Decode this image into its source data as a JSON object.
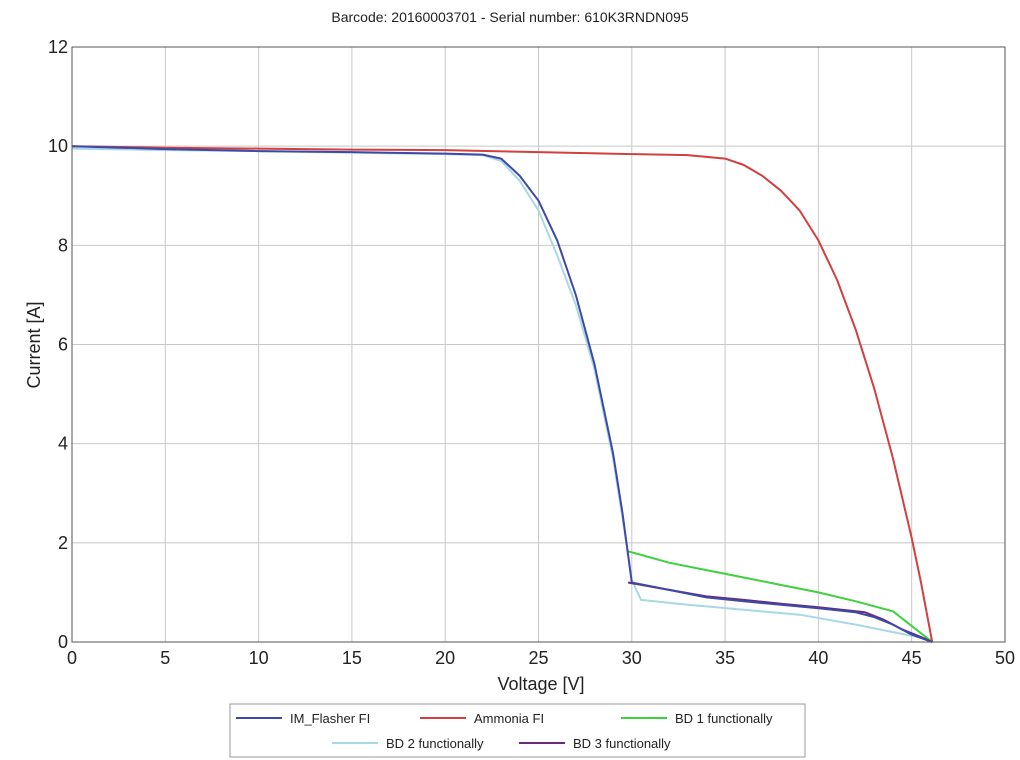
{
  "chart_data": {
    "type": "line",
    "title": "Barcode: 20160003701 - Serial number: 610K3RNDN095",
    "xlabel": "Voltage [V]",
    "ylabel": "Current [A]",
    "xlim": [
      0,
      50
    ],
    "ylim": [
      0,
      12
    ],
    "xticks": [
      "0",
      "5",
      "10",
      "15",
      "20",
      "25",
      "30",
      "35",
      "40",
      "45",
      "50"
    ],
    "yticks": [
      "0",
      "2",
      "4",
      "6",
      "8",
      "10",
      "12"
    ],
    "grid": true,
    "legend_position": "bottom",
    "series": [
      {
        "name": "IM_Flasher FI",
        "color": "#3b4aa8",
        "points": [
          [
            0,
            10.0
          ],
          [
            5,
            9.94
          ],
          [
            10,
            9.9
          ],
          [
            15,
            9.88
          ],
          [
            20,
            9.85
          ],
          [
            22,
            9.83
          ],
          [
            23,
            9.75
          ],
          [
            24,
            9.4
          ],
          [
            25,
            8.9
          ],
          [
            26,
            8.1
          ],
          [
            27,
            7.0
          ],
          [
            28,
            5.6
          ],
          [
            29,
            3.8
          ],
          [
            29.5,
            2.6
          ],
          [
            30,
            1.2
          ],
          [
            32,
            1.05
          ],
          [
            34,
            0.9
          ],
          [
            36,
            0.82
          ],
          [
            38,
            0.75
          ],
          [
            40,
            0.68
          ],
          [
            42,
            0.6
          ],
          [
            43,
            0.5
          ],
          [
            44,
            0.35
          ],
          [
            45,
            0.15
          ],
          [
            46.1,
            0.0
          ]
        ]
      },
      {
        "name": "Ammonia FI",
        "color": "#d23f3f",
        "points": [
          [
            0,
            10.0
          ],
          [
            5,
            9.97
          ],
          [
            10,
            9.95
          ],
          [
            15,
            9.93
          ],
          [
            20,
            9.92
          ],
          [
            25,
            9.88
          ],
          [
            30,
            9.84
          ],
          [
            33,
            9.82
          ],
          [
            35,
            9.75
          ],
          [
            36,
            9.62
          ],
          [
            37,
            9.4
          ],
          [
            38,
            9.1
          ],
          [
            39,
            8.7
          ],
          [
            40,
            8.1
          ],
          [
            41,
            7.3
          ],
          [
            42,
            6.3
          ],
          [
            43,
            5.1
          ],
          [
            44,
            3.7
          ],
          [
            45,
            2.1
          ],
          [
            45.5,
            1.2
          ],
          [
            46.1,
            0.0
          ]
        ]
      },
      {
        "name": "BD 1 functionally",
        "color": "#3fd03f",
        "points": [
          [
            29.8,
            1.83
          ],
          [
            32,
            1.6
          ],
          [
            34,
            1.45
          ],
          [
            36,
            1.3
          ],
          [
            38,
            1.15
          ],
          [
            40,
            1.0
          ],
          [
            42,
            0.82
          ],
          [
            44,
            0.62
          ],
          [
            46.1,
            0.0
          ]
        ]
      },
      {
        "name": "BD 2 functionally",
        "color": "#a8d8e6",
        "points": [
          [
            0,
            9.95
          ],
          [
            5,
            9.92
          ],
          [
            10,
            9.9
          ],
          [
            15,
            9.87
          ],
          [
            20,
            9.84
          ],
          [
            22,
            9.82
          ],
          [
            23,
            9.7
          ],
          [
            24,
            9.3
          ],
          [
            25,
            8.7
          ],
          [
            26,
            7.8
          ],
          [
            27,
            6.8
          ],
          [
            28,
            5.5
          ],
          [
            29,
            3.7
          ],
          [
            29.5,
            2.5
          ],
          [
            30,
            1.25
          ],
          [
            30.5,
            0.85
          ],
          [
            33,
            0.75
          ],
          [
            36,
            0.65
          ],
          [
            39,
            0.55
          ],
          [
            42,
            0.35
          ],
          [
            44,
            0.2
          ],
          [
            46,
            0.05
          ]
        ]
      },
      {
        "name": "BD 3 functionally",
        "color": "#6b2a78",
        "points": [
          [
            29.8,
            1.2
          ],
          [
            32,
            1.05
          ],
          [
            34,
            0.92
          ],
          [
            36,
            0.85
          ],
          [
            38,
            0.77
          ],
          [
            40,
            0.7
          ],
          [
            42.5,
            0.6
          ],
          [
            43.5,
            0.45
          ],
          [
            44.5,
            0.25
          ],
          [
            45.5,
            0.1
          ],
          [
            46.1,
            0.0
          ]
        ]
      }
    ]
  }
}
